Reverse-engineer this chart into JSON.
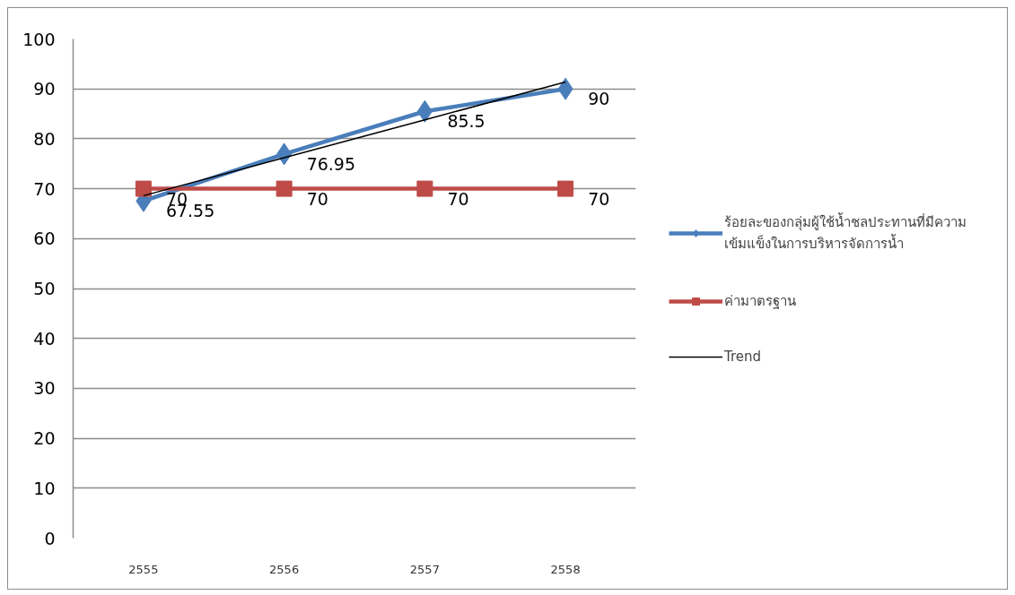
{
  "chart_data": {
    "type": "line",
    "categories": [
      "2555",
      "2556",
      "2557",
      "2558"
    ],
    "ylim": [
      0,
      100
    ],
    "yticks": [
      0,
      10,
      20,
      30,
      40,
      50,
      60,
      70,
      80,
      90,
      100
    ],
    "grid": "y",
    "legend": "right",
    "series": [
      {
        "name": "ร้อยละของกลุ่มผู้ใช้น้ำชลประทานที่มีความเข้มแข็งในการบริหารจัดการน้ำ",
        "color": "#4a7ebb",
        "values": [
          67.55,
          76.95,
          85.5,
          90
        ],
        "marker": "diamond",
        "data_labels": true
      },
      {
        "name": "ค่ามาตรฐาน",
        "color": "#be4b48",
        "values": [
          70,
          70,
          70,
          70
        ],
        "marker": "square",
        "data_labels": true
      },
      {
        "name": "Trend",
        "color": "#000000",
        "values": [
          68.6,
          76.2,
          83.8,
          91.4
        ],
        "marker": "none"
      }
    ]
  }
}
